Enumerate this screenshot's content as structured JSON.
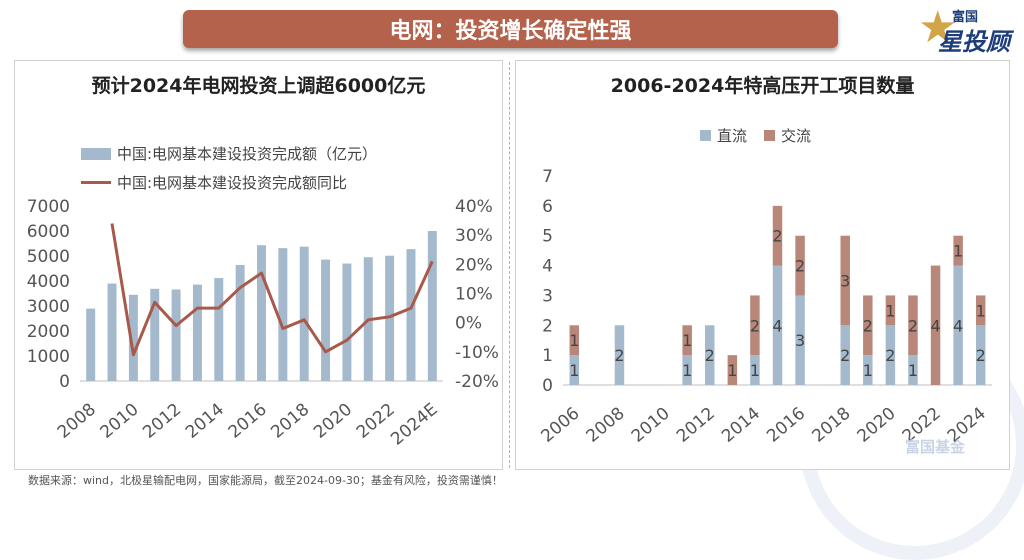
{
  "banner": {
    "title": "电网：投资增长确定性强"
  },
  "logo": {
    "top": "富国",
    "bottom": "星投顾"
  },
  "watermark": "富国基金",
  "footnote": "数据来源：wind，北极星输配电网，国家能源局，截至2024-09-30；基金有风险，投资需谨慎！",
  "colors": {
    "bar": "#a5b9cd",
    "line": "#a8594a",
    "dc": "#a5b9cd",
    "ac": "#b8877a"
  },
  "chart_data": [
    {
      "type": "bar",
      "title": "预计2024年电网投资上调超6000亿元",
      "legend": {
        "bar": "中国:电网基本建设投资完成额（亿元）",
        "line": "中国:电网基本建设投资完成额同比"
      },
      "categories": [
        "2008",
        "2009",
        "2010",
        "2011",
        "2012",
        "2013",
        "2014",
        "2015",
        "2016",
        "2017",
        "2018",
        "2019",
        "2020",
        "2021",
        "2022",
        "2023",
        "2024E"
      ],
      "xtick_labels": [
        "2008",
        "2010",
        "2012",
        "2014",
        "2016",
        "2018",
        "2020",
        "2022",
        "2024E"
      ],
      "series": [
        {
          "name": "中国:电网基本建设投资完成额（亿元）",
          "type": "bar",
          "axis": "left",
          "values": [
            2895,
            3898,
            3448,
            3687,
            3661,
            3856,
            4118,
            4640,
            5431,
            5315,
            5373,
            4856,
            4699,
            4951,
            5012,
            5275,
            6000
          ]
        },
        {
          "name": "中国:电网基本建设投资完成额同比",
          "type": "line",
          "axis": "right",
          "values": [
            null,
            34,
            -11,
            7,
            -1,
            5,
            5,
            12,
            17,
            -2,
            1,
            -10,
            -6,
            1,
            2,
            5,
            21
          ]
        }
      ],
      "ylim_left": [
        0,
        7000
      ],
      "yticks_left": [
        "0",
        "1000",
        "2000",
        "3000",
        "4000",
        "5000",
        "6000",
        "7000"
      ],
      "ylim_right": [
        -20,
        40
      ],
      "yticks_right": [
        "-20%",
        "-10%",
        "0%",
        "10%",
        "20%",
        "30%",
        "40%"
      ]
    },
    {
      "type": "bar",
      "stacked": true,
      "title": "2006-2024年特高压开工项目数量",
      "legend": [
        "直流",
        "交流"
      ],
      "categories": [
        "2006",
        "2007",
        "2008",
        "2009",
        "2010",
        "2011",
        "2012",
        "2013",
        "2014",
        "2015",
        "2016",
        "2017",
        "2018",
        "2019",
        "2020",
        "2021",
        "2022",
        "2023",
        "2024"
      ],
      "xtick_labels": [
        "2006",
        "2008",
        "2010",
        "2012",
        "2014",
        "2016",
        "2018",
        "2020",
        "2022",
        "2024"
      ],
      "series": [
        {
          "name": "直流",
          "values": [
            1,
            0,
            2,
            0,
            0,
            1,
            2,
            0,
            1,
            4,
            3,
            0,
            2,
            1,
            2,
            1,
            0,
            4,
            2
          ]
        },
        {
          "name": "交流",
          "values": [
            1,
            0,
            0,
            0,
            0,
            1,
            0,
            1,
            2,
            2,
            2,
            0,
            3,
            2,
            1,
            2,
            4,
            1,
            1
          ]
        }
      ],
      "ylim": [
        0,
        7
      ],
      "yticks": [
        "0",
        "1",
        "2",
        "3",
        "4",
        "5",
        "6",
        "7"
      ]
    }
  ]
}
